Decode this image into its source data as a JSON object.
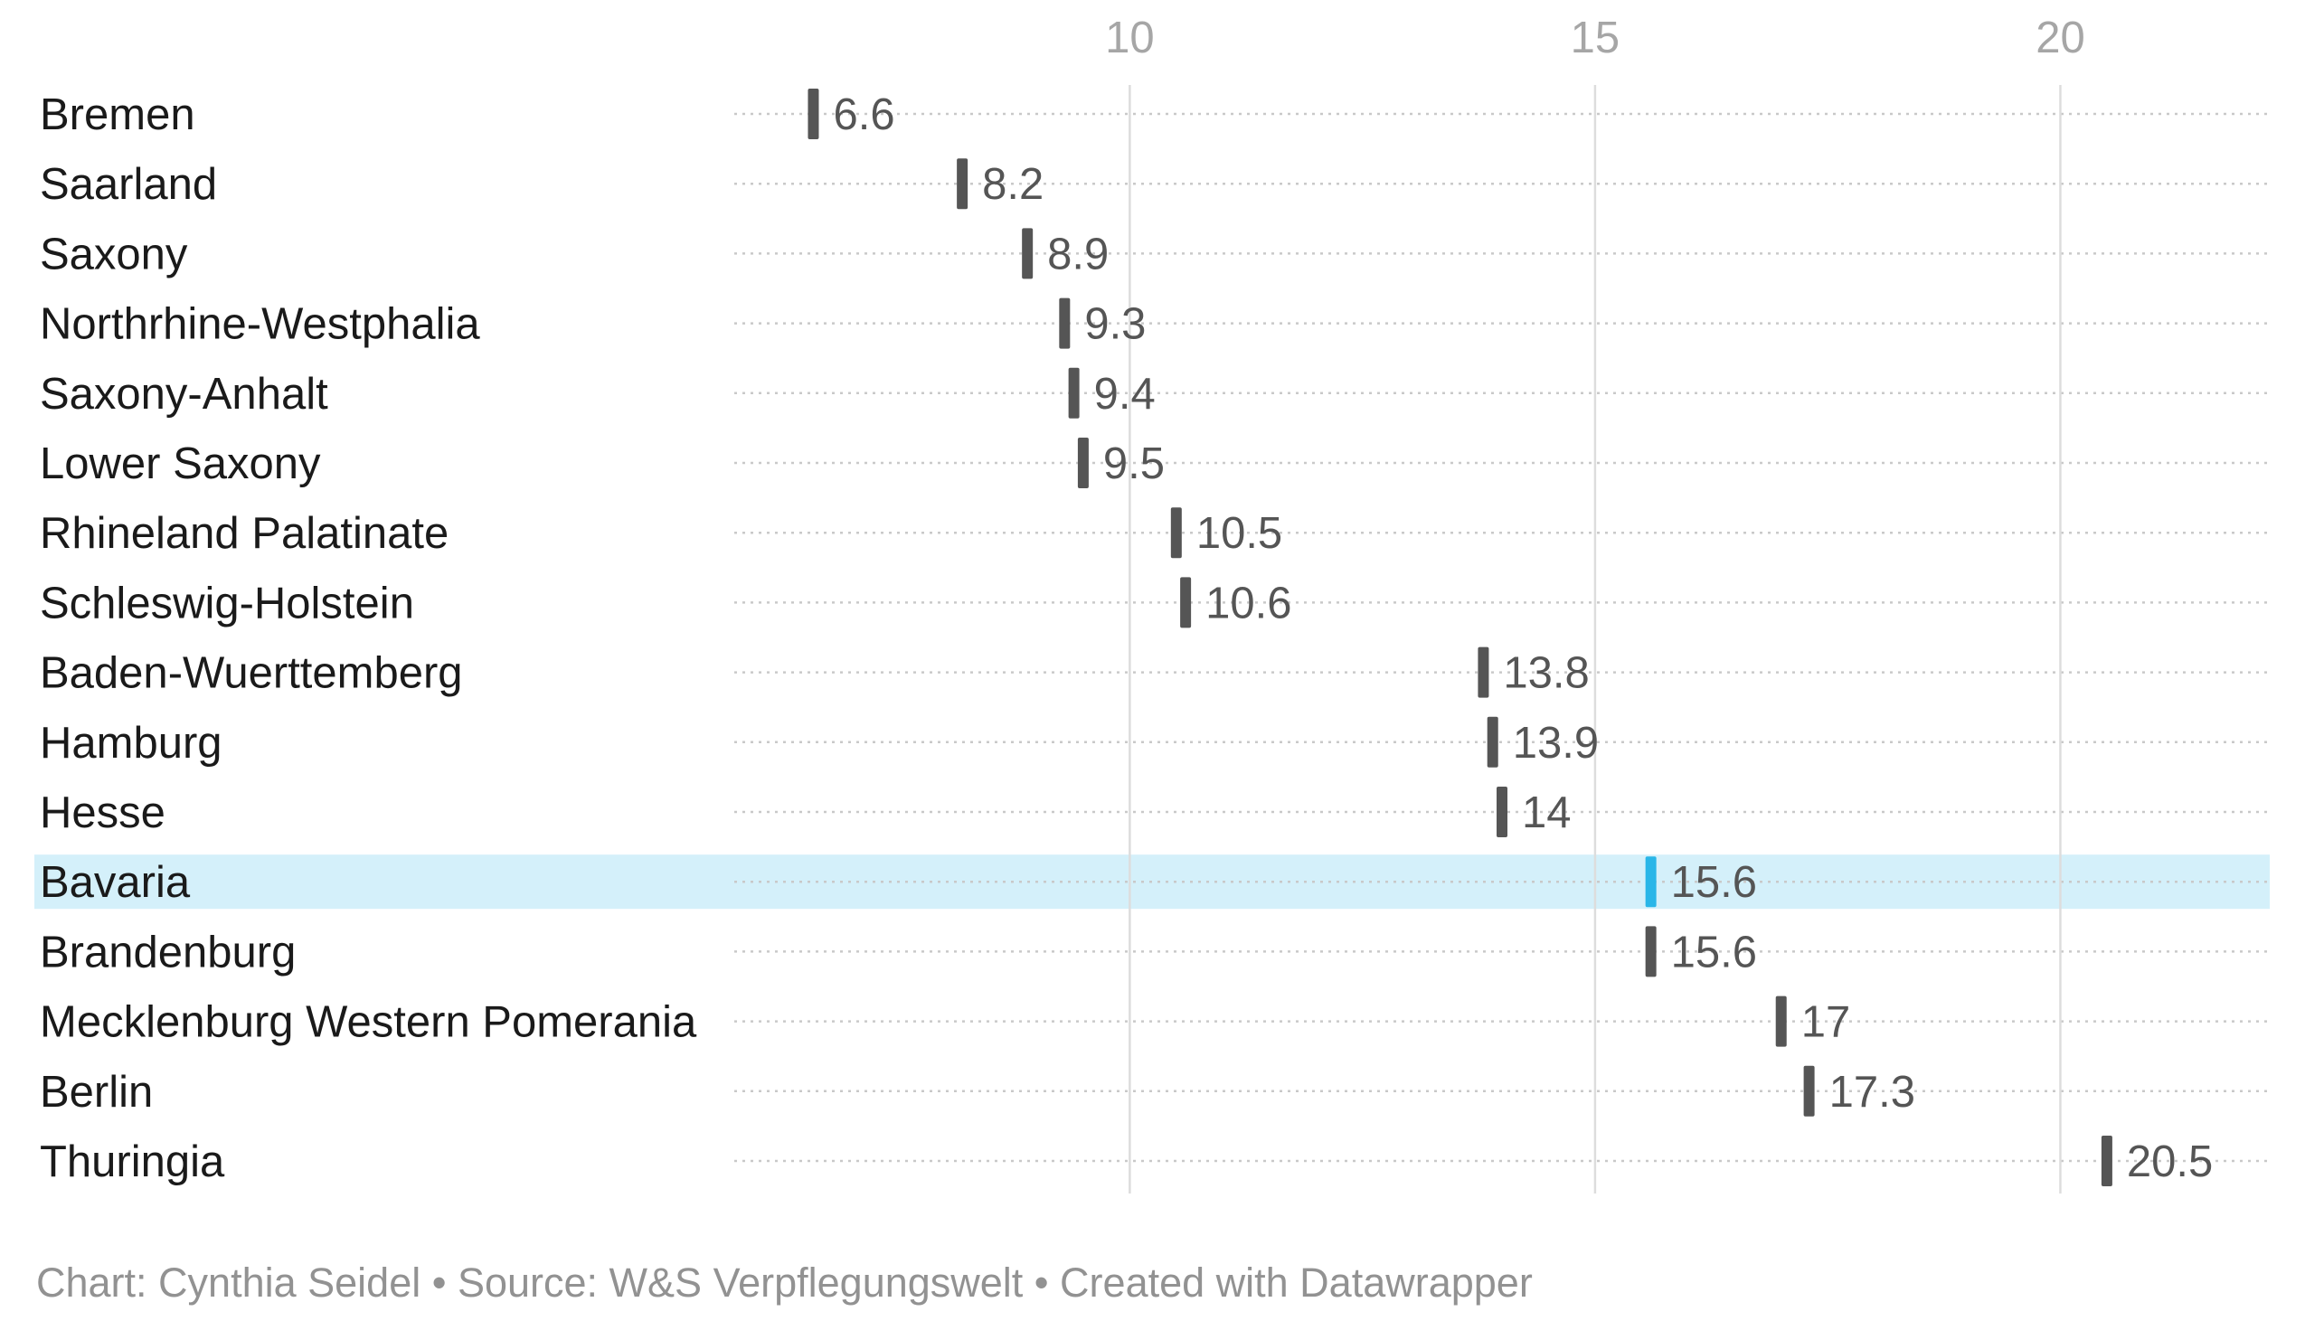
{
  "chart_data": {
    "type": "dot",
    "title": "",
    "xlabel": "",
    "ylabel": "",
    "x_ticks": [
      10,
      15,
      20
    ],
    "xlim": [
      5.75,
      22.25
    ],
    "grid": true,
    "highlight_category": "Bavaria",
    "colors": {
      "default": "#555555",
      "highlight": "#29b6e8",
      "highlight_band": "#d4f0fa",
      "tick": "#a6a6a6",
      "grid": "#dddddd"
    },
    "categories": [
      "Bremen",
      "Saarland",
      "Saxony",
      "Northrhine-Westphalia",
      "Saxony-Anhalt",
      "Lower Saxony",
      "Rhineland Palatinate",
      "Schleswig-Holstein",
      "Baden-Wuerttemberg",
      "Hamburg",
      "Hesse",
      "Bavaria",
      "Brandenburg",
      "Mecklenburg Western Pomerania",
      "Berlin",
      "Thuringia"
    ],
    "values": [
      6.6,
      8.2,
      8.9,
      9.3,
      9.4,
      9.5,
      10.5,
      10.6,
      13.8,
      13.9,
      14,
      15.6,
      15.6,
      17,
      17.3,
      20.5
    ],
    "value_labels": [
      "6.6",
      "8.2",
      "8.9",
      "9.3",
      "9.4",
      "9.5",
      "10.5",
      "10.6",
      "13.8",
      "13.9",
      "14",
      "15.6",
      "15.6",
      "17",
      "17.3",
      "20.5"
    ]
  },
  "footer": {
    "text": "Chart: Cynthia Seidel • Source: W&S Verpflegungswelt • Created with Datawrapper"
  }
}
